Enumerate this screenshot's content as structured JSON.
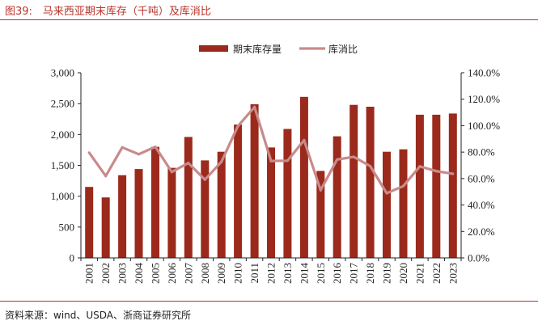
{
  "figure": {
    "title": "图39:　马来西亚期末库存（千吨）及库消比",
    "source": "资料来源：wind、USDA、浙商证券研究所"
  },
  "colors": {
    "bar": "#9b2a1c",
    "line": "#c98a8a",
    "accent": "#b8342a",
    "axis": "#222222"
  },
  "chart_data": {
    "type": "bar",
    "categories": [
      "2001",
      "2002",
      "2003",
      "2004",
      "2005",
      "2006",
      "2007",
      "2008",
      "2009",
      "2010",
      "2011",
      "2012",
      "2013",
      "2014",
      "2015",
      "2016",
      "2017",
      "2018",
      "2019",
      "2020",
      "2021",
      "2022",
      "2023"
    ],
    "series": [
      {
        "name": "期末库存量",
        "type": "bar",
        "axis": "left",
        "values": [
          1150,
          980,
          1340,
          1440,
          1800,
          1460,
          1960,
          1580,
          1720,
          2160,
          2490,
          1790,
          2090,
          2610,
          1410,
          1970,
          2480,
          2450,
          1720,
          1760,
          2320,
          2320,
          2340
        ]
      },
      {
        "name": "库消比",
        "type": "line",
        "axis": "right",
        "values": [
          79.6,
          61.9,
          83.6,
          78.4,
          84.0,
          65.0,
          71.8,
          59.2,
          72.7,
          99.7,
          114.1,
          73.3,
          73.5,
          89.0,
          51.2,
          74.4,
          76.4,
          69.4,
          48.9,
          54.3,
          69.2,
          65.6,
          63.6
        ]
      }
    ],
    "y_left": {
      "min": 0,
      "max": 3000,
      "ticks": [
        0,
        500,
        1000,
        1500,
        2000,
        2500,
        3000
      ],
      "tick_labels": [
        "0",
        "500",
        "1,000",
        "1,500",
        "2,000",
        "2,500",
        "3,000"
      ]
    },
    "y_right": {
      "min": 0,
      "max": 140,
      "ticks": [
        0,
        20,
        40,
        60,
        80,
        100,
        120,
        140
      ],
      "tick_labels": [
        "0.0%",
        "20.0%",
        "40.0%",
        "60.0%",
        "80.0%",
        "100.0%",
        "120.0%",
        "140.0%"
      ]
    },
    "legend": [
      "期末库存量",
      "库消比"
    ],
    "legend_position": "top-center",
    "grid": false
  }
}
